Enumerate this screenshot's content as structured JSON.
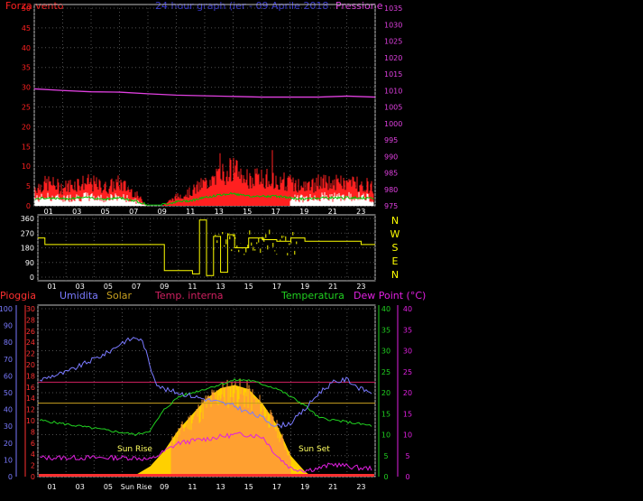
{
  "colors": {
    "wind": "#ff2020",
    "gust": "#ff0000",
    "windAvg": "#ffffff",
    "windGreen": "#00c000",
    "pressure": "#e040e0",
    "title": "#3a3ad0",
    "direction": "#ffff00",
    "humidity": "#7a7aff",
    "solar": "#c8a020",
    "temp_int": "#d02060",
    "temperature": "#20d020",
    "dewpoint": "#e020e0",
    "rain": "#ff3030",
    "sunFill": "#ffd000",
    "sunFill2": "#ffa030",
    "grid": "#505050",
    "frame": "#c0c0c0"
  },
  "top_panel": {
    "title": "24 hour graph (ier - 09 Aprile 2018",
    "left_label": "Forza vento",
    "right_label": "Pressione",
    "left_ticks": [
      "0",
      "5",
      "10",
      "15",
      "20",
      "25",
      "30",
      "35",
      "40",
      "45",
      "50"
    ],
    "right_ticks": [
      "975",
      "980",
      "985",
      "990",
      "995",
      "1000",
      "1005",
      "1010",
      "1015",
      "1020",
      "1025",
      "1030",
      "1035"
    ],
    "x_ticks": [
      "01",
      "03",
      "05",
      "07",
      "09",
      "11",
      "13",
      "15",
      "17",
      "19",
      "21",
      "23"
    ]
  },
  "mid_panel": {
    "left_ticks": [
      "0",
      "90",
      "180",
      "270",
      "360"
    ],
    "compass": [
      "N",
      "W",
      "S",
      "E",
      "N"
    ],
    "x_ticks": [
      "01",
      "03",
      "05",
      "07",
      "09",
      "11",
      "13",
      "15",
      "17",
      "19",
      "21",
      "23"
    ]
  },
  "bottom_panel": {
    "labels": {
      "rain": "Pioggia",
      "humidity": "Umidita",
      "solar": "Solar",
      "temp_int": "Temp. interna",
      "temperature": "Temperatura",
      "dewpoint": "Dew Point (°C)"
    },
    "rain_ticks": [
      "0",
      "2",
      "4",
      "6",
      "8",
      "10",
      "12",
      "14",
      "16",
      "18",
      "20",
      "22",
      "24",
      "26",
      "28",
      "30"
    ],
    "hum_ticks": [
      "0",
      "10",
      "20",
      "30",
      "40",
      "50",
      "60",
      "70",
      "80",
      "90",
      "100"
    ],
    "temp_ticks": [
      "0",
      "5",
      "10",
      "15",
      "20",
      "25",
      "30",
      "35",
      "40"
    ],
    "dew_ticks": [
      "0",
      "5",
      "10",
      "15",
      "20",
      "25",
      "30",
      "35",
      "40"
    ],
    "x_ticks": [
      "01",
      "03",
      "05",
      "Sun Rise",
      "09",
      "11",
      "13",
      "15",
      "17",
      "19",
      "21",
      "23"
    ],
    "sunrise_label": "Sun Rise",
    "sunset_label": "Sun Set"
  },
  "chart_data": [
    {
      "type": "line",
      "xlim": [
        0,
        24
      ],
      "series": [
        {
          "name": "Pressione",
          "x": [
            0,
            2,
            4,
            6,
            8,
            10,
            12,
            14,
            16,
            18,
            20,
            22,
            24
          ],
          "values": [
            1010.5,
            1010,
            1009.6,
            1009.5,
            1009,
            1008.6,
            1008.4,
            1008.2,
            1008,
            1008,
            1008,
            1008.3,
            1008
          ]
        },
        {
          "name": "Forza vento",
          "x": [
            0,
            1,
            2,
            3,
            4,
            5,
            6,
            7,
            8,
            9,
            10,
            11,
            12,
            13,
            14,
            15,
            16,
            17,
            18,
            19,
            20,
            21,
            22,
            23,
            24
          ],
          "values": [
            4,
            5,
            4,
            5,
            5,
            4,
            5,
            3,
            0,
            0,
            2,
            3,
            5,
            7,
            8,
            6,
            6,
            6,
            5,
            4,
            5,
            5,
            5,
            5,
            4
          ]
        }
      ],
      "ylim_left": [
        0,
        50
      ],
      "ylim_right": [
        975,
        1035
      ]
    },
    {
      "type": "line",
      "xlim": [
        0,
        24
      ],
      "series": [
        {
          "name": "Direzione",
          "x": [
            0,
            0.5,
            1,
            3,
            5,
            7,
            8.5,
            9,
            10.8,
            11,
            11.5,
            12,
            12.5,
            13,
            13.5,
            14,
            15,
            16,
            17,
            18,
            19,
            20,
            21,
            22,
            23,
            24
          ],
          "values": [
            240,
            200,
            200,
            200,
            200,
            200,
            200,
            40,
            40,
            20,
            350,
            10,
            250,
            30,
            260,
            180,
            240,
            230,
            220,
            240,
            220,
            220,
            220,
            220,
            200,
            200
          ]
        }
      ],
      "ylim": [
        0,
        360
      ]
    },
    {
      "type": "line",
      "xlim": [
        0,
        24
      ],
      "series": [
        {
          "name": "Umidita",
          "x": [
            0,
            1,
            2,
            3,
            4,
            5,
            6,
            7,
            7.5,
            8,
            8.5,
            9,
            10,
            11,
            12,
            13,
            14,
            15,
            16,
            17,
            18,
            19,
            20,
            21,
            22,
            23,
            24
          ],
          "values": [
            57,
            60,
            62,
            66,
            70,
            74,
            80,
            83,
            80,
            65,
            55,
            52,
            50,
            48,
            46,
            44,
            42,
            38,
            35,
            30,
            32,
            40,
            50,
            56,
            58,
            52,
            50
          ]
        },
        {
          "name": "Solar",
          "x": [
            0,
            24
          ],
          "values": [
            12.5,
            12.5
          ]
        },
        {
          "name": "Temp. interna",
          "x": [
            0,
            24
          ],
          "values": [
            22.5,
            22.5
          ]
        },
        {
          "name": "Temperatura",
          "x": [
            0,
            1,
            2,
            3,
            4,
            5,
            6,
            7,
            8,
            9,
            10,
            11,
            12,
            13,
            14,
            15,
            16,
            17,
            18,
            19,
            20,
            21,
            22,
            23,
            24
          ],
          "values": [
            13.5,
            13,
            12.5,
            12,
            11.5,
            11,
            10.5,
            10,
            11,
            16,
            19,
            20,
            21,
            22,
            23,
            23,
            22,
            21,
            19,
            17,
            14,
            13.5,
            13,
            12.5,
            12
          ]
        },
        {
          "name": "Dew Point (°C)",
          "x": [
            0,
            1,
            2,
            3,
            4,
            5,
            6,
            7,
            8,
            9,
            10,
            11,
            12,
            13,
            14,
            15,
            16,
            17,
            18,
            19,
            20,
            21,
            22,
            23,
            24
          ],
          "values": [
            4.5,
            4.5,
            4.5,
            4.5,
            4.5,
            4.5,
            4.5,
            4.5,
            4,
            6,
            8,
            8.5,
            9,
            9.5,
            10,
            10,
            9.5,
            5,
            2,
            1.5,
            2,
            3,
            2.5,
            2,
            2
          ]
        },
        {
          "name": "Solar fill",
          "x": [
            6.5,
            7,
            8,
            9,
            10,
            11,
            12,
            13,
            14,
            15,
            16,
            17,
            18,
            19,
            19.5
          ],
          "values": [
            0,
            2,
            10,
            25,
            45,
            60,
            75,
            85,
            88,
            84,
            70,
            50,
            20,
            5,
            0
          ]
        }
      ],
      "ylim_rain": [
        0,
        30
      ],
      "ylim_hum": [
        0,
        100
      ],
      "ylim_temp": [
        0,
        40
      ]
    }
  ]
}
